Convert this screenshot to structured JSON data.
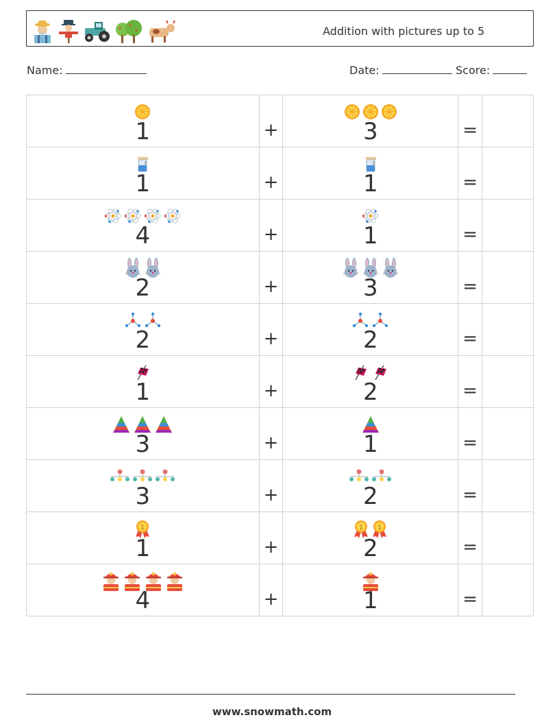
{
  "header": {
    "title": "Addition with pictures up to 5",
    "icons": [
      "farmer-icon",
      "scarecrow-icon",
      "tractor-icon",
      "tree-icon",
      "cow-icon"
    ]
  },
  "meta": {
    "name_label": "Name:",
    "date_label": "Date:",
    "score_label": "Score:"
  },
  "problems": [
    {
      "icon": "orange-slice-icon",
      "a": "1",
      "b": "3",
      "plus": "+",
      "equals": "="
    },
    {
      "icon": "measuring-cup-icon",
      "a": "1",
      "b": "1",
      "plus": "+",
      "equals": "="
    },
    {
      "icon": "atom-icon",
      "a": "4",
      "b": "1",
      "plus": "+",
      "equals": "="
    },
    {
      "icon": "bunny-icon",
      "a": "2",
      "b": "3",
      "plus": "+",
      "equals": "="
    },
    {
      "icon": "molecule-icon",
      "a": "2",
      "b": "2",
      "plus": "+",
      "equals": "="
    },
    {
      "icon": "checkered-flag-icon",
      "a": "1",
      "b": "2",
      "plus": "+",
      "equals": "="
    },
    {
      "icon": "pyramid-icon",
      "a": "3",
      "b": "1",
      "plus": "+",
      "equals": "="
    },
    {
      "icon": "molecule-chain-icon",
      "a": "3",
      "b": "2",
      "plus": "+",
      "equals": "="
    },
    {
      "icon": "medal-icon",
      "a": "1",
      "b": "2",
      "plus": "+",
      "equals": "="
    },
    {
      "icon": "firefighter-icon",
      "a": "4",
      "b": "1",
      "plus": "+",
      "equals": "="
    }
  ],
  "footer": {
    "url": "www.snowmath.com"
  }
}
